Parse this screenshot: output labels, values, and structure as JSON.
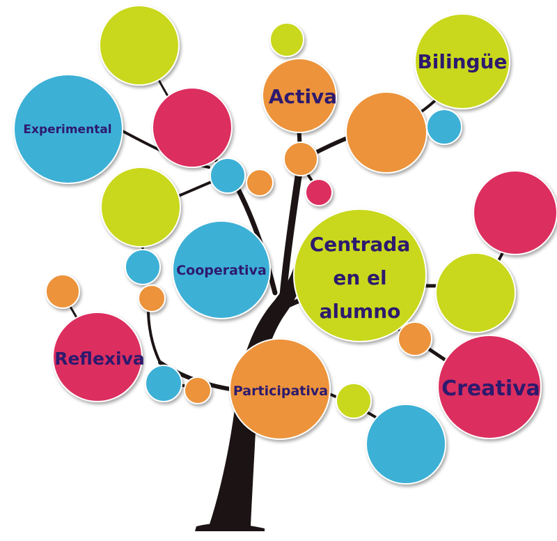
{
  "colors": {
    "green": "#c9d81f",
    "pink": "#dc2f5e",
    "orange": "#ec933a",
    "blue": "#3cb0d6",
    "trunk": "#1c1414",
    "label": "#2d1a6e"
  },
  "labels": {
    "bilingue": "Bilingüe",
    "activa": "Activa",
    "experimental": "Experimental",
    "cooperativa": "Cooperativa",
    "centrada_1": "Centrada",
    "centrada_2": "en el",
    "centrada_3": "alumno",
    "reflexiva": "Reflexiva",
    "participativa": "Participativa",
    "creativa": "Creativa"
  }
}
